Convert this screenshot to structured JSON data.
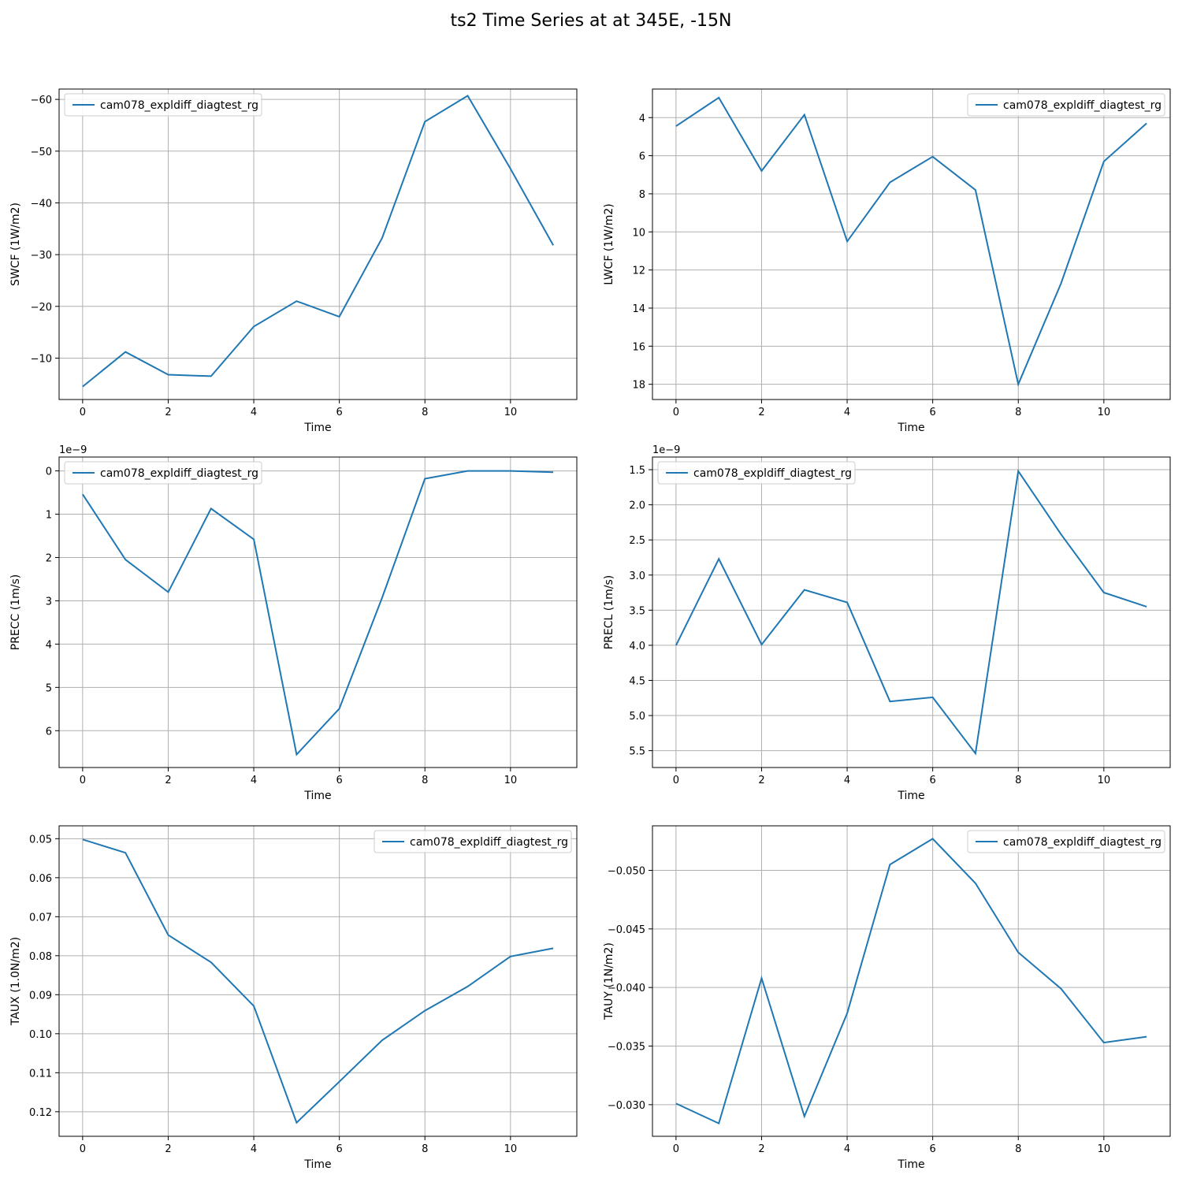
{
  "figure": {
    "title": "ts2 Time Series at at 345E, -15N"
  },
  "style": {
    "line_color": "#1f77b4",
    "grid_color": "#b0b0b0"
  },
  "chart_data": [
    {
      "type": "line",
      "xlabel": "Time",
      "ylabel": "SWCF (1W/m2)",
      "x": [
        0,
        1,
        2,
        3,
        4,
        5,
        6,
        7,
        8,
        9,
        10,
        11
      ],
      "series": [
        {
          "name": "cam078_expldiff_diagtest_rg",
          "values": [
            -4.5,
            -11.2,
            -6.8,
            -6.5,
            -16.1,
            -21.0,
            -18.0,
            -33.2,
            -55.7,
            -60.7,
            -46.6,
            -31.8
          ]
        }
      ],
      "ylim": [
        -2.0,
        -62.0
      ],
      "yticks": [
        -10,
        -20,
        -30,
        -40,
        -50,
        -60
      ],
      "ytick_labels": [
        "−10",
        "−20",
        "−30",
        "−40",
        "−50",
        "−60"
      ],
      "xticks": [
        0,
        2,
        4,
        6,
        8,
        10
      ],
      "xlim": [
        -0.55,
        11.55
      ],
      "y_inverted": true,
      "legend": "upper left",
      "offset_text": "",
      "grid": true
    },
    {
      "type": "line",
      "xlabel": "Time",
      "ylabel": "LWCF (1W/m2)",
      "x": [
        0,
        1,
        2,
        3,
        4,
        5,
        6,
        7,
        8,
        9,
        10,
        11
      ],
      "series": [
        {
          "name": "cam078_expldiff_diagtest_rg",
          "values": [
            4.45,
            2.95,
            6.8,
            3.85,
            10.5,
            7.4,
            6.05,
            7.8,
            18.0,
            12.7,
            6.3,
            4.3
          ]
        }
      ],
      "ylim": [
        18.8,
        2.5
      ],
      "yticks": [
        4,
        6,
        8,
        10,
        12,
        14,
        16,
        18
      ],
      "ytick_labels": [
        "4",
        "6",
        "8",
        "10",
        "12",
        "14",
        "16",
        "18"
      ],
      "xticks": [
        0,
        2,
        4,
        6,
        8,
        10
      ],
      "xlim": [
        -0.55,
        11.55
      ],
      "y_inverted": true,
      "legend": "upper right",
      "offset_text": "",
      "grid": true
    },
    {
      "type": "line",
      "xlabel": "Time",
      "ylabel": "PRECC (1m/s)",
      "x": [
        0,
        1,
        2,
        3,
        4,
        5,
        6,
        7,
        8,
        9,
        10,
        11
      ],
      "series": [
        {
          "name": "cam078_expldiff_diagtest_rg",
          "values": [
            0.54,
            2.05,
            2.8,
            0.87,
            1.58,
            6.55,
            5.49,
            2.93,
            0.18,
            0.0,
            0.0,
            0.03
          ]
        }
      ],
      "ylim": [
        6.85,
        -0.32
      ],
      "yticks": [
        0,
        1,
        2,
        3,
        4,
        5,
        6
      ],
      "ytick_labels": [
        "0",
        "1",
        "2",
        "3",
        "4",
        "5",
        "6"
      ],
      "xticks": [
        0,
        2,
        4,
        6,
        8,
        10
      ],
      "xlim": [
        -0.55,
        11.55
      ],
      "y_inverted": true,
      "legend": "upper left",
      "offset_text": "1e−9",
      "grid": true
    },
    {
      "type": "line",
      "xlabel": "Time",
      "ylabel": "PRECL (1m/s)",
      "x": [
        0,
        1,
        2,
        3,
        4,
        5,
        6,
        7,
        8,
        9,
        10,
        11
      ],
      "series": [
        {
          "name": "cam078_expldiff_diagtest_rg",
          "values": [
            4.0,
            2.77,
            3.99,
            3.21,
            3.39,
            4.8,
            4.74,
            5.54,
            1.52,
            2.42,
            3.25,
            3.45
          ]
        }
      ],
      "ylim": [
        5.74,
        1.32
      ],
      "yticks": [
        1.5,
        2.0,
        2.5,
        3.0,
        3.5,
        4.0,
        4.5,
        5.0,
        5.5
      ],
      "ytick_labels": [
        "1.5",
        "2.0",
        "2.5",
        "3.0",
        "3.5",
        "4.0",
        "4.5",
        "5.0",
        "5.5"
      ],
      "xticks": [
        0,
        2,
        4,
        6,
        8,
        10
      ],
      "xlim": [
        -0.55,
        11.55
      ],
      "y_inverted": true,
      "legend": "upper left",
      "offset_text": "1e−9",
      "grid": true
    },
    {
      "type": "line",
      "xlabel": "Time",
      "ylabel": "TAUX (1.0N/m2)",
      "x": [
        0,
        1,
        2,
        3,
        4,
        5,
        6,
        7,
        8,
        9,
        10,
        11
      ],
      "series": [
        {
          "name": "cam078_expldiff_diagtest_rg",
          "values": [
            0.0502,
            0.0536,
            0.0747,
            0.0817,
            0.0929,
            0.1228,
            0.1123,
            0.1017,
            0.0941,
            0.0879,
            0.0802,
            0.0781
          ]
        }
      ],
      "ylim": [
        0.1263,
        0.0467
      ],
      "yticks": [
        0.05,
        0.06,
        0.07,
        0.08,
        0.09,
        0.1,
        0.11,
        0.12
      ],
      "ytick_labels": [
        "0.05",
        "0.06",
        "0.07",
        "0.08",
        "0.09",
        "0.10",
        "0.11",
        "0.12"
      ],
      "xticks": [
        0,
        2,
        4,
        6,
        8,
        10
      ],
      "xlim": [
        -0.55,
        11.55
      ],
      "y_inverted": true,
      "legend": "upper right",
      "offset_text": "",
      "grid": true
    },
    {
      "type": "line",
      "xlabel": "Time",
      "ylabel": "TAUY (1N/m2)",
      "x": [
        0,
        1,
        2,
        3,
        4,
        5,
        6,
        7,
        8,
        9,
        10,
        11
      ],
      "series": [
        {
          "name": "cam078_expldiff_diagtest_rg",
          "values": [
            -0.0301,
            -0.0284,
            -0.0408,
            -0.029,
            -0.0378,
            -0.0505,
            -0.0527,
            -0.0489,
            -0.043,
            -0.0399,
            -0.0353,
            -0.0358
          ]
        }
      ],
      "ylim": [
        -0.0273,
        -0.0538
      ],
      "yticks": [
        -0.05,
        -0.045,
        -0.04,
        -0.035,
        -0.03
      ],
      "ytick_labels": [
        "−0.050",
        "−0.045",
        "−0.040",
        "−0.035",
        "−0.030"
      ],
      "xticks": [
        0,
        2,
        4,
        6,
        8,
        10
      ],
      "xlim": [
        -0.55,
        11.55
      ],
      "y_inverted": false,
      "legend": "upper right",
      "offset_text": "",
      "grid": true
    }
  ]
}
